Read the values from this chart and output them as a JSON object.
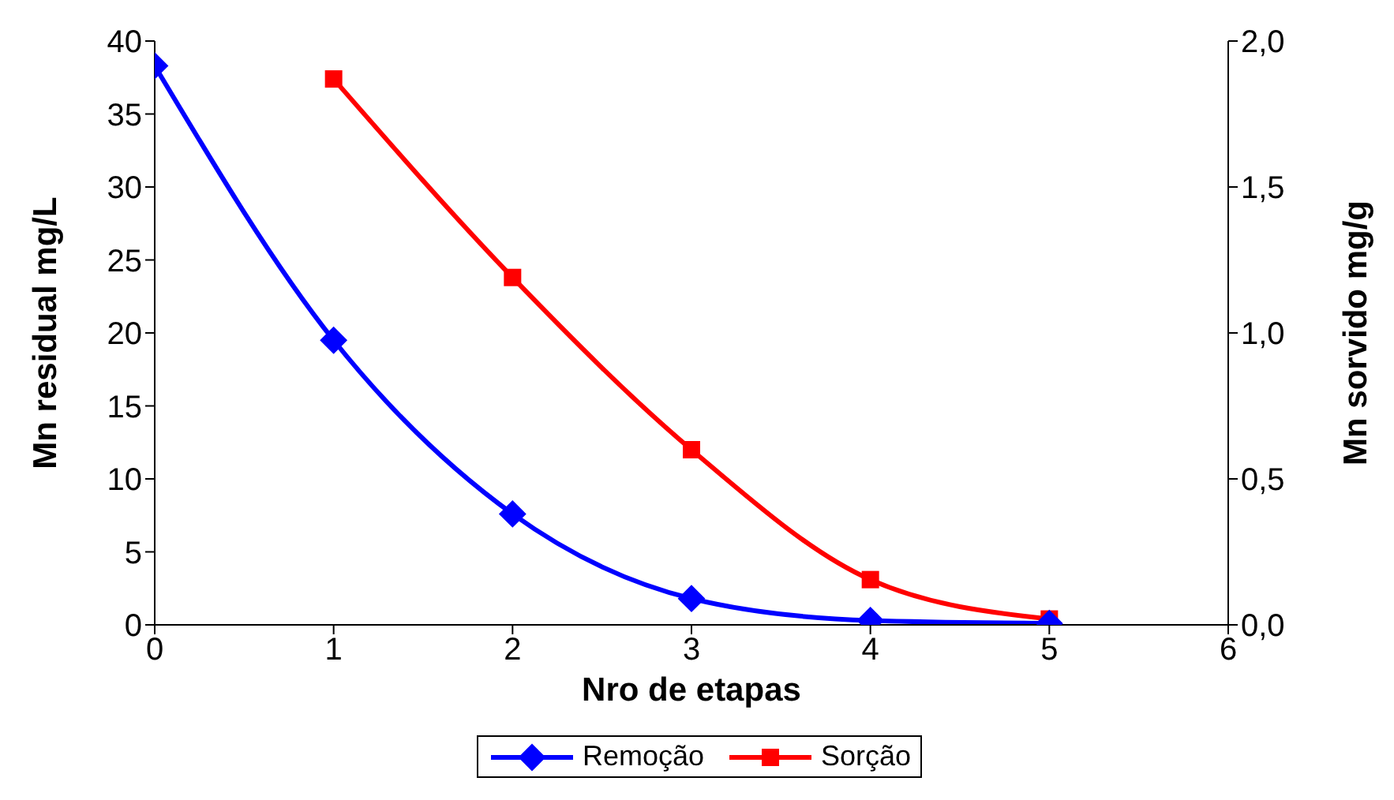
{
  "chart_data": {
    "type": "line",
    "xlabel": "Nro de etapas",
    "ylabel": "Mn residual mg/L",
    "y2label": "Mn sorvido mg/g",
    "x": [
      0,
      1,
      2,
      3,
      4,
      5
    ],
    "series": [
      {
        "name": "Remoção",
        "color": "#0000ff",
        "marker": "diamond",
        "values": [
          38.3,
          19.5,
          7.6,
          1.8,
          0.3,
          0.1
        ]
      },
      {
        "name": "Sorção",
        "color": "#ff0000",
        "marker": "square",
        "axis": "y2",
        "x": [
          1,
          2,
          3,
          4,
          5
        ],
        "values": [
          1.87,
          1.19,
          0.6,
          0.155,
          0.02
        ]
      }
    ],
    "xlim": [
      0,
      6
    ],
    "xticks": [
      0,
      1,
      2,
      3,
      4,
      5,
      6
    ],
    "ylim": [
      0,
      40
    ],
    "yticks": [
      0,
      5,
      10,
      15,
      20,
      25,
      30,
      35,
      40
    ],
    "y2lim": [
      0,
      2
    ],
    "y2ticks": [
      {
        "value": 0,
        "label": "0,0"
      },
      {
        "value": 0.5,
        "label": "0,5"
      },
      {
        "value": 1,
        "label": "1,0"
      },
      {
        "value": 1.5,
        "label": "1,5"
      },
      {
        "value": 2,
        "label": "2,0"
      }
    ],
    "grid": false,
    "legend": "bottom"
  }
}
